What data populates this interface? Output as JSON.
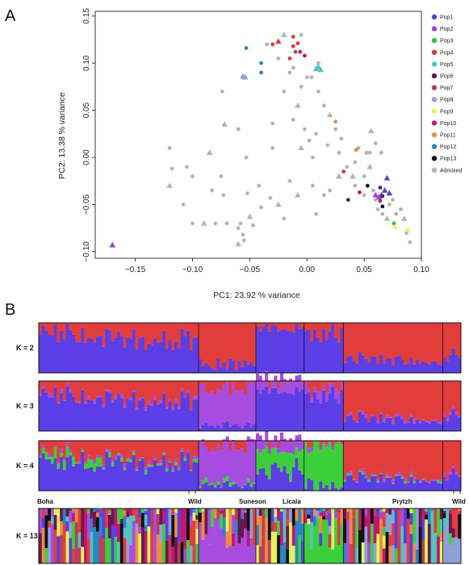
{
  "panelA": {
    "label": "A",
    "xlabel": "PC1:  23.92 % variance",
    "ylabel": "PC2:  13.38 % variance",
    "xticks": [
      "−0.15",
      "−0.10",
      "−0.05",
      "0.00",
      "0.05",
      "0.10"
    ],
    "yticks": [
      "0.15",
      "0.10",
      "0.05",
      "0.00",
      "−0.05",
      "−0.10"
    ],
    "legend": [
      {
        "name": "Pop1",
        "color": "#5046d8"
      },
      {
        "name": "Pop2",
        "color": "#9b3fd6"
      },
      {
        "name": "Pop3",
        "color": "#34c23a"
      },
      {
        "name": "Pop4",
        "color": "#d43e3a"
      },
      {
        "name": "Pop5",
        "color": "#55c2c0"
      },
      {
        "name": "Pop6",
        "color": "#6b1650"
      },
      {
        "name": "Pop7",
        "color": "#b8405a"
      },
      {
        "name": "Pop8",
        "color": "#8ea0d8"
      },
      {
        "name": "Pop9",
        "color": "#e3f35a"
      },
      {
        "name": "Pop10",
        "color": "#c01870"
      },
      {
        "name": "Pop11",
        "color": "#f08a44"
      },
      {
        "name": "Pop12",
        "color": "#2a86c4"
      },
      {
        "name": "Pop13",
        "color": "#111111"
      },
      {
        "name": "Admixed",
        "color": "#b4b4b4"
      }
    ]
  },
  "panelB": {
    "label": "B",
    "k_labels": [
      "K = 2",
      "K = 3",
      "K = 4",
      "K = 13"
    ],
    "sites_top": [
      "Boha",
      "Wild",
      "Suneson",
      "Licala",
      "Prytzh",
      "Wild"
    ]
  },
  "chart_data": [
    {
      "type": "scatter",
      "title": "",
      "xlabel": "PC1:  23.92 % variance",
      "ylabel": "PC2:  13.38 % variance",
      "xlim": [
        -0.185,
        0.1
      ],
      "ylim": [
        -0.107,
        0.155
      ],
      "grid": false,
      "legend_position": "right",
      "series": [
        {
          "name": "Pop1",
          "marker": "triangle",
          "points": [
            [
              0.07,
              -0.022
            ],
            [
              0.068,
              -0.035
            ],
            [
              0.072,
              -0.038
            ],
            [
              0.065,
              -0.04
            ]
          ]
        },
        {
          "name": "Pop2",
          "marker": "triangle",
          "points": [
            [
              -0.17,
              -0.093
            ],
            [
              0.06,
              -0.04
            ],
            [
              0.063,
              -0.042
            ]
          ]
        },
        {
          "name": "Pop3",
          "marker": "circle",
          "points": [
            [
              0.076,
              -0.07
            ]
          ]
        },
        {
          "name": "Pop4",
          "marker": "mixed",
          "points": [
            [
              -0.012,
              0.118
            ],
            [
              -0.008,
              0.121
            ],
            [
              -0.025,
              0.123
            ],
            [
              -0.012,
              0.128
            ],
            [
              -0.015,
              0.105
            ],
            [
              -0.03,
              0.12
            ]
          ]
        },
        {
          "name": "Pop5",
          "marker": "triangle",
          "points": [
            [
              0.01,
              0.096
            ],
            [
              0.012,
              0.093
            ],
            [
              0.008,
              0.094
            ]
          ]
        },
        {
          "name": "Pop6",
          "marker": "circle",
          "points": [
            [
              0.064,
              -0.032
            ],
            [
              0.066,
              -0.041
            ],
            [
              0.036,
              -0.045
            ]
          ]
        },
        {
          "name": "Pop7",
          "marker": "circle",
          "points": [
            [
              0.032,
              -0.015
            ],
            [
              -0.01,
              0.112
            ]
          ]
        },
        {
          "name": "Pop8",
          "marker": "triangle",
          "points": [
            [
              -0.054,
              0.085
            ],
            [
              -0.056,
              0.086
            ]
          ]
        },
        {
          "name": "Pop9",
          "marker": "circle",
          "points": [
            [
              0.077,
              -0.074
            ],
            [
              0.088,
              -0.077
            ]
          ]
        },
        {
          "name": "Pop10",
          "marker": "circle",
          "points": [
            [
              -0.002,
              0.108
            ],
            [
              -0.006,
              0.112
            ],
            [
              0.046,
              -0.037
            ],
            [
              0.064,
              -0.046
            ]
          ]
        },
        {
          "name": "Pop11",
          "marker": "circle",
          "points": [
            [
              0.025,
              0.038
            ],
            [
              0.043,
              0.008
            ]
          ]
        },
        {
          "name": "Pop12",
          "marker": "circle",
          "points": [
            [
              -0.053,
              0.116
            ],
            [
              -0.04,
              0.1
            ],
            [
              -0.04,
              0.09
            ]
          ]
        },
        {
          "name": "Pop13",
          "marker": "circle",
          "points": [
            [
              0.053,
              -0.03
            ],
            [
              0.066,
              -0.052
            ]
          ]
        },
        {
          "name": "Admixed",
          "marker": "mixed",
          "points": [
            [
              -0.12,
              0.01
            ],
            [
              -0.118,
              -0.012
            ],
            [
              -0.12,
              -0.03
            ],
            [
              -0.105,
              -0.01
            ],
            [
              -0.1,
              -0.02
            ],
            [
              -0.108,
              -0.05
            ],
            [
              -0.1,
              -0.07
            ],
            [
              -0.085,
              0.005
            ],
            [
              -0.083,
              -0.035
            ],
            [
              -0.073,
              -0.04
            ],
            [
              -0.07,
              -0.07
            ],
            [
              -0.075,
              -0.02
            ],
            [
              -0.072,
              0.035
            ],
            [
              -0.074,
              0.07
            ],
            [
              -0.06,
              0.03
            ],
            [
              -0.053,
              0.0
            ],
            [
              -0.052,
              -0.038
            ],
            [
              -0.05,
              -0.063
            ],
            [
              -0.058,
              -0.07
            ],
            [
              -0.06,
              -0.075
            ],
            [
              -0.056,
              -0.082
            ],
            [
              -0.055,
              -0.088
            ],
            [
              -0.06,
              -0.092
            ],
            [
              -0.047,
              -0.072
            ],
            [
              -0.04,
              -0.053
            ],
            [
              -0.042,
              -0.03
            ],
            [
              -0.032,
              -0.043
            ],
            [
              -0.025,
              -0.05
            ],
            [
              -0.02,
              -0.065
            ],
            [
              -0.03,
              0.01
            ],
            [
              -0.03,
              0.036
            ],
            [
              -0.015,
              -0.025
            ],
            [
              -0.008,
              -0.04
            ],
            [
              -0.002,
              0.03
            ],
            [
              0.002,
              0.018
            ],
            [
              0.005,
              0.0
            ],
            [
              -0.012,
              0.04
            ],
            [
              -0.008,
              0.055
            ],
            [
              -0.02,
              0.07
            ],
            [
              -0.015,
              0.09
            ],
            [
              -0.025,
              0.105
            ],
            [
              -0.035,
              0.12
            ],
            [
              -0.02,
              0.13
            ],
            [
              -0.005,
              0.13
            ],
            [
              0.004,
              0.085
            ],
            [
              0.01,
              0.07
            ],
            [
              0.015,
              0.055
            ],
            [
              0.02,
              0.045
            ],
            [
              0.025,
              0.03
            ],
            [
              0.03,
              0.02
            ],
            [
              0.028,
              0.005
            ],
            [
              0.035,
              -0.01
            ],
            [
              0.04,
              -0.02
            ],
            [
              0.042,
              -0.005
            ],
            [
              0.045,
              0.01
            ],
            [
              0.05,
              -0.02
            ],
            [
              0.052,
              0.005
            ],
            [
              0.055,
              -0.01
            ],
            [
              0.058,
              -0.035
            ],
            [
              0.06,
              -0.045
            ],
            [
              0.062,
              -0.055
            ],
            [
              0.066,
              -0.06
            ],
            [
              0.07,
              -0.065
            ],
            [
              0.072,
              -0.05
            ],
            [
              0.075,
              -0.045
            ],
            [
              0.078,
              -0.06
            ],
            [
              0.082,
              -0.055
            ],
            [
              0.085,
              -0.065
            ],
            [
              0.087,
              -0.08
            ],
            [
              0.09,
              -0.09
            ],
            [
              0.018,
              0.013
            ],
            [
              0.008,
              0.025
            ],
            [
              -0.005,
              0.01
            ],
            [
              0.015,
              -0.04
            ],
            [
              0.008,
              -0.06
            ],
            [
              0.005,
              -0.03
            ],
            [
              0.02,
              -0.035
            ],
            [
              0.028,
              -0.02
            ],
            [
              0.01,
              0.1
            ],
            [
              0.0,
              0.085
            ],
            [
              -0.005,
              0.075
            ],
            [
              -0.012,
              0.095
            ],
            [
              -0.09,
              -0.07
            ],
            [
              -0.08,
              -0.07
            ],
            [
              0.055,
              0.005
            ],
            [
              0.06,
              0.015
            ],
            [
              0.065,
              0.005
            ],
            [
              0.056,
              0.028
            ],
            [
              0.042,
              -0.03
            ],
            [
              0.05,
              -0.04
            ]
          ]
        }
      ]
    },
    {
      "type": "bar",
      "title": "",
      "stacked": true,
      "ylim": [
        0,
        1
      ],
      "note_series": "Per-individual ancestry proportions shown as stacked columns for each K.",
      "K": [
        2,
        3,
        4,
        13
      ],
      "groups": [
        "Boha",
        "Wild",
        "Suneson",
        "Licala",
        "Prytzh",
        "Wild"
      ]
    }
  ]
}
